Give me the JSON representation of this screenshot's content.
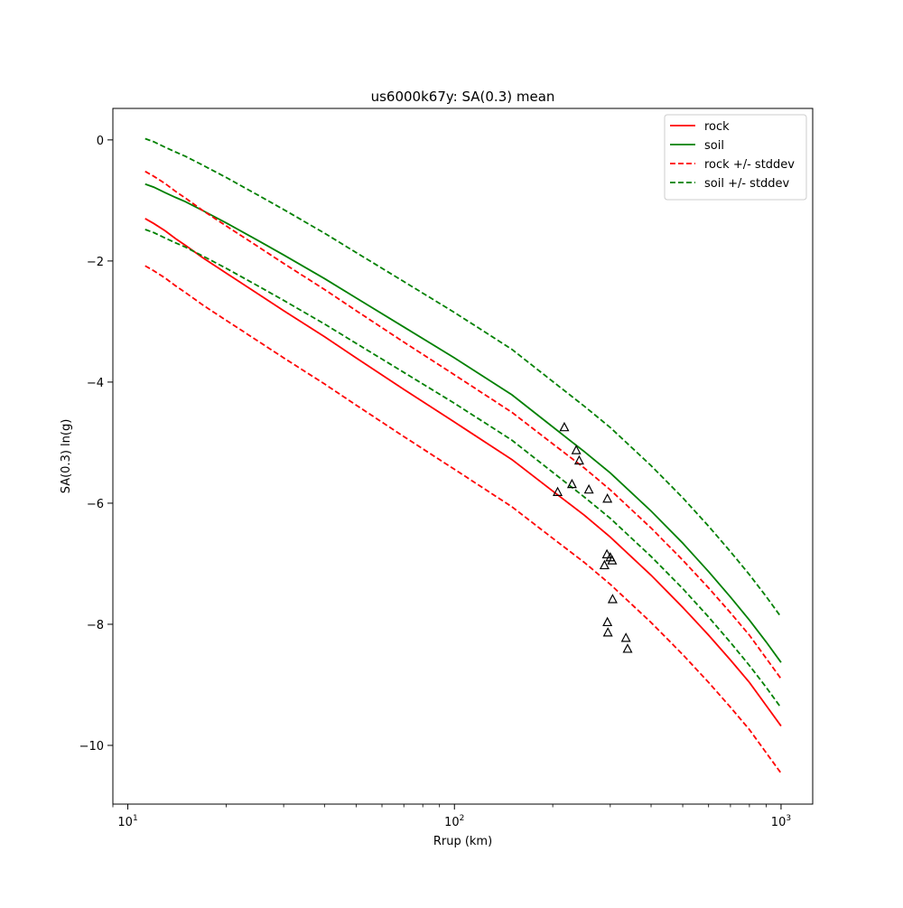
{
  "chart_data": {
    "type": "line",
    "title": "us6000k67y: SA(0.3) mean",
    "xlabel": "Rrup (km)",
    "ylabel": "SA(0.3) ln(g)",
    "xscale": "log",
    "xlim": [
      9,
      1250
    ],
    "ylim": [
      -10.97,
      0.52
    ],
    "x_ticks": [
      {
        "value": 10,
        "base": "10",
        "exp": "1"
      },
      {
        "value": 100,
        "base": "10",
        "exp": "2"
      },
      {
        "value": 1000,
        "base": "10",
        "exp": "3"
      }
    ],
    "y_ticks": [
      {
        "value": 0,
        "label": "0"
      },
      {
        "value": -2,
        "label": "−2"
      },
      {
        "value": -4,
        "label": "−4"
      },
      {
        "value": -6,
        "label": "−6"
      },
      {
        "value": -8,
        "label": "−8"
      },
      {
        "value": -10,
        "label": "−10"
      }
    ],
    "grid": false,
    "legend_position": "upper-right",
    "x": [
      11.3,
      12.0,
      13.0,
      14.0,
      15.0,
      17.0,
      20.0,
      25.0,
      30.0,
      40.0,
      50.0,
      70.0,
      100.0,
      150.0,
      200.0,
      250.0,
      300.0,
      400.0,
      500.0,
      600.0,
      700.0,
      800.0,
      900.0,
      1000.0
    ],
    "series": [
      {
        "name": "rock",
        "color": "#ff0000",
        "style": "solid",
        "values": [
          -1.3,
          -1.38,
          -1.5,
          -1.63,
          -1.74,
          -1.95,
          -2.2,
          -2.54,
          -2.82,
          -3.25,
          -3.6,
          -4.12,
          -4.66,
          -5.28,
          -5.8,
          -6.2,
          -6.56,
          -7.19,
          -7.72,
          -8.18,
          -8.59,
          -8.96,
          -9.34,
          -9.68
        ]
      },
      {
        "name": "soil",
        "color": "#008000",
        "style": "solid",
        "values": [
          -0.73,
          -0.78,
          -0.87,
          -0.95,
          -1.02,
          -1.17,
          -1.37,
          -1.66,
          -1.9,
          -2.29,
          -2.61,
          -3.09,
          -3.6,
          -4.21,
          -4.74,
          -5.15,
          -5.5,
          -6.13,
          -6.66,
          -7.13,
          -7.55,
          -7.93,
          -8.29,
          -8.63
        ]
      },
      {
        "name": "rock +/- stddev",
        "color": "#ff0000",
        "style": "dashed",
        "values": [
          -0.52,
          -0.6,
          -0.72,
          -0.85,
          -0.96,
          -1.17,
          -1.42,
          -1.76,
          -2.04,
          -2.47,
          -2.82,
          -3.34,
          -3.88,
          -4.5,
          -5.02,
          -5.42,
          -5.78,
          -6.41,
          -6.94,
          -7.4,
          -7.81,
          -8.18,
          -8.56,
          -8.9
        ]
      },
      {
        "name": "",
        "color": "#ff0000",
        "style": "dashed",
        "values": [
          -2.08,
          -2.16,
          -2.28,
          -2.41,
          -2.52,
          -2.73,
          -2.98,
          -3.32,
          -3.6,
          -4.03,
          -4.38,
          -4.9,
          -5.44,
          -6.06,
          -6.58,
          -6.98,
          -7.34,
          -7.97,
          -8.5,
          -8.96,
          -9.37,
          -9.74,
          -10.12,
          -10.46
        ]
      },
      {
        "name": "soil +/- stddev",
        "color": "#008000",
        "style": "dashed",
        "values": [
          0.02,
          -0.03,
          -0.12,
          -0.2,
          -0.27,
          -0.42,
          -0.62,
          -0.91,
          -1.15,
          -1.54,
          -1.86,
          -2.34,
          -2.85,
          -3.46,
          -3.99,
          -4.4,
          -4.75,
          -5.38,
          -5.91,
          -6.38,
          -6.8,
          -7.18,
          -7.54,
          -7.88
        ]
      },
      {
        "name": "",
        "color": "#008000",
        "style": "dashed",
        "values": [
          -1.48,
          -1.53,
          -1.62,
          -1.7,
          -1.77,
          -1.92,
          -2.12,
          -2.41,
          -2.65,
          -3.04,
          -3.36,
          -3.84,
          -4.35,
          -4.96,
          -5.49,
          -5.9,
          -6.25,
          -6.88,
          -7.41,
          -7.88,
          -8.3,
          -8.68,
          -9.04,
          -9.38
        ]
      }
    ],
    "observations": {
      "marker": "triangle-open",
      "color": "#000000",
      "points": [
        {
          "x": 207,
          "y": -5.82
        },
        {
          "x": 217,
          "y": -4.75
        },
        {
          "x": 229,
          "y": -5.69
        },
        {
          "x": 236,
          "y": -5.13
        },
        {
          "x": 241,
          "y": -5.3
        },
        {
          "x": 258,
          "y": -5.78
        },
        {
          "x": 288,
          "y": -7.03
        },
        {
          "x": 293,
          "y": -6.85
        },
        {
          "x": 294,
          "y": -5.93
        },
        {
          "x": 294,
          "y": -7.97
        },
        {
          "x": 295,
          "y": -8.14
        },
        {
          "x": 300,
          "y": -6.9
        },
        {
          "x": 304,
          "y": -6.95
        },
        {
          "x": 305,
          "y": -7.59
        },
        {
          "x": 335,
          "y": -8.23
        },
        {
          "x": 339,
          "y": -8.41
        }
      ]
    }
  }
}
